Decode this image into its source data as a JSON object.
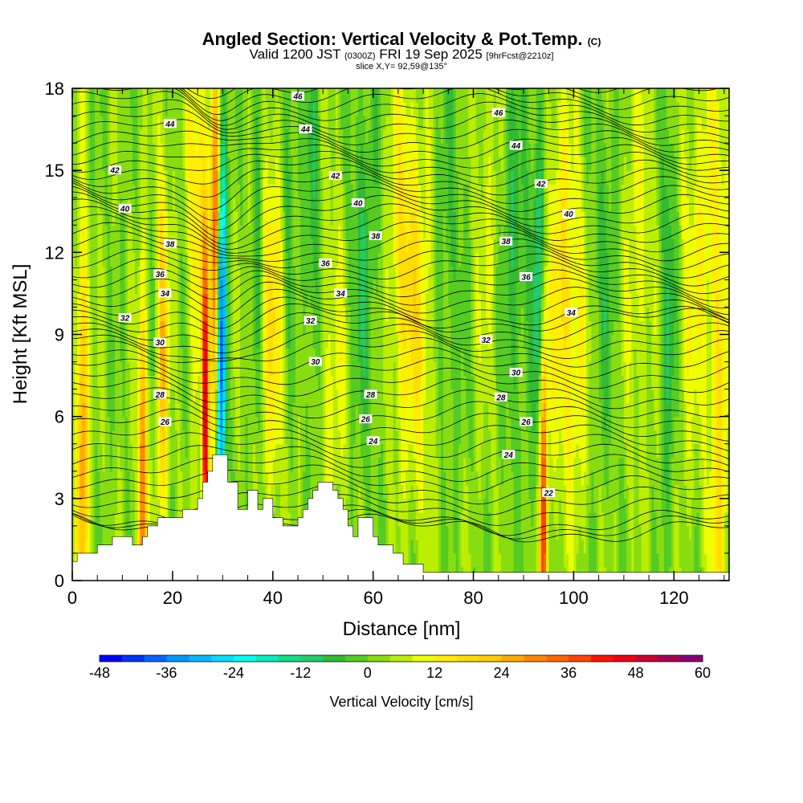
{
  "chart_data": {
    "type": "heatmap",
    "title": "Angled Section: Vertical Velocity & Pot.Temp.",
    "title_tag": "(C)",
    "subtitle_valid": "Valid 1200 JST",
    "subtitle_z": "(0300Z)",
    "subtitle_date": "FRI 19 Sep 2025",
    "subtitle_fcst": "[9hrFcst@2210z]",
    "slice_label": "slice X,Y= 92,59@135°",
    "xlabel": "Distance [nm]",
    "ylabel": "Height [Kft MSL]",
    "xlim": [
      0,
      131
    ],
    "ylim": [
      0,
      18
    ],
    "x_ticks": [
      0,
      20,
      40,
      60,
      80,
      100,
      120
    ],
    "y_ticks": [
      0,
      3,
      6,
      9,
      12,
      15,
      18
    ],
    "colorbar": {
      "label": "Vertical Velocity [cm/s]",
      "ticks": [
        -48,
        -36,
        -24,
        -12,
        0,
        12,
        24,
        36,
        48,
        60
      ],
      "min": -48,
      "max": 60,
      "step": 4,
      "colors": [
        "#0000ff",
        "#0033ff",
        "#0066ff",
        "#0099ff",
        "#00bbff",
        "#00ddff",
        "#00ffee",
        "#00eebb",
        "#11dd88",
        "#22cc66",
        "#33bb33",
        "#55cc22",
        "#88dd11",
        "#bbee00",
        "#eeff00",
        "#ffee00",
        "#ffdd00",
        "#ffcc00",
        "#ffaa00",
        "#ff8800",
        "#ff6600",
        "#ff4400",
        "#ff1100",
        "#ee0011",
        "#cc0033",
        "#aa0055",
        "#880077"
      ]
    },
    "pot_temp_contours": [
      {
        "value": 22,
        "label": "22",
        "label_x": 95,
        "label_y": 3.2
      },
      {
        "value": 24,
        "label": "24",
        "label_x": 60,
        "label_y": 5.1
      },
      {
        "value": 24,
        "label": "24",
        "label_x": 87,
        "label_y": 4.6
      },
      {
        "value": 26,
        "label": "26",
        "label_x": 18.5,
        "label_y": 5.8
      },
      {
        "value": 26,
        "label": "26",
        "label_x": 58.5,
        "label_y": 5.9
      },
      {
        "value": 26,
        "label": "26",
        "label_x": 90.5,
        "label_y": 5.8
      },
      {
        "value": 28,
        "label": "28",
        "label_x": 17.5,
        "label_y": 6.8
      },
      {
        "value": 28,
        "label": "28",
        "label_x": 59.5,
        "label_y": 6.8
      },
      {
        "value": 28,
        "label": "28",
        "label_x": 85.5,
        "label_y": 6.7
      },
      {
        "value": 30,
        "label": "30",
        "label_x": 17.5,
        "label_y": 8.7
      },
      {
        "value": 30,
        "label": "30",
        "label_x": 48.5,
        "label_y": 8.0
      },
      {
        "value": 30,
        "label": "30",
        "label_x": 88.5,
        "label_y": 7.6
      },
      {
        "value": 32,
        "label": "32",
        "label_x": 10.5,
        "label_y": 9.6
      },
      {
        "value": 32,
        "label": "32",
        "label_x": 47.5,
        "label_y": 9.5
      },
      {
        "value": 32,
        "label": "32",
        "label_x": 82.5,
        "label_y": 8.8
      },
      {
        "value": 34,
        "label": "34",
        "label_x": 18.5,
        "label_y": 10.5
      },
      {
        "value": 34,
        "label": "34",
        "label_x": 53.5,
        "label_y": 10.5
      },
      {
        "value": 34,
        "label": "34",
        "label_x": 99.5,
        "label_y": 9.8
      },
      {
        "value": 36,
        "label": "36",
        "label_x": 17.5,
        "label_y": 11.2
      },
      {
        "value": 36,
        "label": "36",
        "label_x": 50.5,
        "label_y": 11.6
      },
      {
        "value": 36,
        "label": "36",
        "label_x": 90.5,
        "label_y": 11.1
      },
      {
        "value": 38,
        "label": "38",
        "label_x": 19.5,
        "label_y": 12.3
      },
      {
        "value": 38,
        "label": "38",
        "label_x": 60.5,
        "label_y": 12.6
      },
      {
        "value": 38,
        "label": "38",
        "label_x": 86.5,
        "label_y": 12.4
      },
      {
        "value": 40,
        "label": "40",
        "label_x": 10.5,
        "label_y": 13.6
      },
      {
        "value": 40,
        "label": "40",
        "label_x": 57,
        "label_y": 13.8
      },
      {
        "value": 40,
        "label": "40",
        "label_x": 99,
        "label_y": 13.4
      },
      {
        "value": 42,
        "label": "42",
        "label_x": 8.5,
        "label_y": 15.0
      },
      {
        "value": 42,
        "label": "42",
        "label_x": 52.5,
        "label_y": 14.8
      },
      {
        "value": 42,
        "label": "42",
        "label_x": 93.5,
        "label_y": 14.5
      },
      {
        "value": 44,
        "label": "44",
        "label_x": 19.5,
        "label_y": 16.7
      },
      {
        "value": 44,
        "label": "44",
        "label_x": 46.5,
        "label_y": 16.5
      },
      {
        "value": 44,
        "label": "44",
        "label_x": 88.5,
        "label_y": 15.9
      },
      {
        "value": 46,
        "label": "46",
        "label_x": 45,
        "label_y": 17.7
      },
      {
        "value": 46,
        "label": "46",
        "label_x": 85,
        "label_y": 17.1
      }
    ],
    "terrain": [
      [
        0,
        0.7
      ],
      [
        1,
        0.7
      ],
      [
        1,
        1.0
      ],
      [
        5,
        1.0
      ],
      [
        5,
        1.3
      ],
      [
        8,
        1.3
      ],
      [
        8,
        1.6
      ],
      [
        12,
        1.6
      ],
      [
        12,
        1.3
      ],
      [
        14,
        1.3
      ],
      [
        14,
        1.6
      ],
      [
        15,
        1.6
      ],
      [
        15,
        2.0
      ],
      [
        17,
        2.0
      ],
      [
        17,
        2.3
      ],
      [
        22,
        2.3
      ],
      [
        22,
        2.6
      ],
      [
        25,
        2.6
      ],
      [
        25,
        3.0
      ],
      [
        26,
        3.0
      ],
      [
        26,
        3.6
      ],
      [
        27,
        3.6
      ],
      [
        27,
        4.0
      ],
      [
        28,
        4.0
      ],
      [
        28,
        4.6
      ],
      [
        31,
        4.6
      ],
      [
        31,
        3.6
      ],
      [
        33,
        3.6
      ],
      [
        33,
        2.6
      ],
      [
        35,
        2.6
      ],
      [
        35,
        3.3
      ],
      [
        37,
        3.3
      ],
      [
        37,
        2.6
      ],
      [
        38,
        2.6
      ],
      [
        38,
        3.0
      ],
      [
        40,
        3.0
      ],
      [
        40,
        2.3
      ],
      [
        42,
        2.3
      ],
      [
        42,
        2.0
      ],
      [
        45,
        2.0
      ],
      [
        45,
        2.3
      ],
      [
        46,
        2.3
      ],
      [
        46,
        2.6
      ],
      [
        47,
        2.6
      ],
      [
        47,
        3.0
      ],
      [
        48,
        3.0
      ],
      [
        48,
        3.3
      ],
      [
        49,
        3.3
      ],
      [
        49,
        3.6
      ],
      [
        52,
        3.6
      ],
      [
        52,
        3.3
      ],
      [
        53,
        3.3
      ],
      [
        53,
        3.0
      ],
      [
        54,
        3.0
      ],
      [
        54,
        2.6
      ],
      [
        55,
        2.6
      ],
      [
        55,
        2.0
      ],
      [
        56,
        2.0
      ],
      [
        56,
        1.6
      ],
      [
        57,
        1.6
      ],
      [
        57,
        2.3
      ],
      [
        60,
        2.3
      ],
      [
        60,
        1.6
      ],
      [
        61,
        1.6
      ],
      [
        61,
        1.3
      ],
      [
        64,
        1.3
      ],
      [
        64,
        1.0
      ],
      [
        66,
        1.0
      ],
      [
        66,
        0.6
      ],
      [
        70,
        0.6
      ],
      [
        70,
        0.3
      ],
      [
        131,
        0.3
      ]
    ]
  }
}
